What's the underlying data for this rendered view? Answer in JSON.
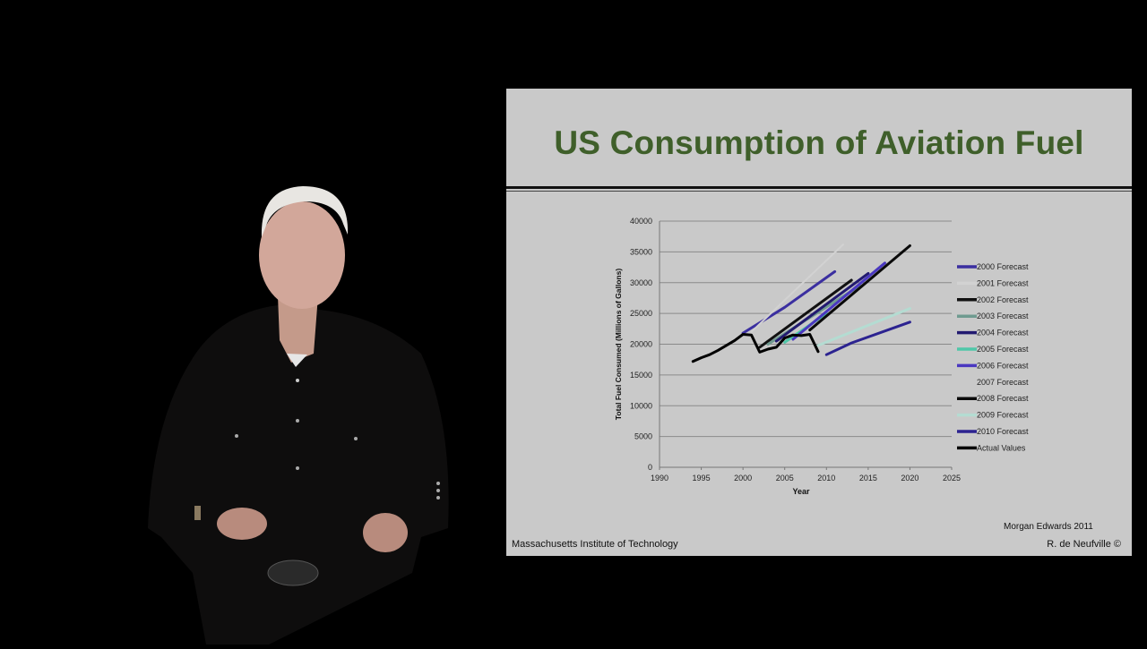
{
  "slide": {
    "title": "US Consumption of Aviation Fuel",
    "credit": "Morgan Edwards 2011",
    "footer_left": "Massachusetts Institute of Technology",
    "footer_right": "R. de Neufville  ©",
    "title_color": "#3f5f2a",
    "background": "#c9c9c9"
  },
  "chart_data": {
    "type": "line",
    "title": "",
    "xlabel": "Year",
    "ylabel": "Total Fuel Consumed (Millions of Gallons)",
    "xlim": [
      1990,
      2025
    ],
    "ylim": [
      0,
      40000
    ],
    "xticks": [
      1990,
      1995,
      2000,
      2005,
      2010,
      2015,
      2020,
      2025
    ],
    "yticks": [
      0,
      5000,
      10000,
      15000,
      20000,
      25000,
      30000,
      35000,
      40000
    ],
    "grid": "horizontal",
    "legend_position": "right",
    "series": [
      {
        "name": "2000 Forecast",
        "color": "#3b2fa0",
        "width": 3,
        "x": [
          2000,
          2005,
          2011
        ],
        "y": [
          21800,
          26000,
          31800
        ]
      },
      {
        "name": "2001 Forecast",
        "color": "#d2d2d2",
        "width": 2,
        "x": [
          2001,
          2012
        ],
        "y": [
          22000,
          36200
        ]
      },
      {
        "name": "2002 Forecast",
        "color": "#111111",
        "width": 3,
        "x": [
          2002,
          2013
        ],
        "y": [
          19500,
          30400
        ]
      },
      {
        "name": "2003 Forecast",
        "color": "#6f9a90",
        "width": 3,
        "x": [
          2003,
          2014
        ],
        "y": [
          20000,
          29500
        ]
      },
      {
        "name": "2004 Forecast",
        "color": "#221a70",
        "width": 3,
        "x": [
          2004,
          2015
        ],
        "y": [
          20500,
          31500
        ]
      },
      {
        "name": "2005 Forecast",
        "color": "#4fc7a8",
        "width": 3,
        "x": [
          2005,
          2010
        ],
        "y": [
          20300,
          25000
        ]
      },
      {
        "name": "2006 Forecast",
        "color": "#4a38c0",
        "width": 3,
        "x": [
          2006,
          2017
        ],
        "y": [
          20800,
          33200
        ]
      },
      {
        "name": "2007 Forecast",
        "color": "#c9c9c9",
        "width": 2,
        "x": [],
        "y": []
      },
      {
        "name": "2008 Forecast",
        "color": "#0a0a0a",
        "width": 3,
        "x": [
          2008,
          2020
        ],
        "y": [
          22300,
          36000
        ]
      },
      {
        "name": "2009 Forecast",
        "color": "#b4dcd2",
        "width": 3,
        "x": [
          2009,
          2020
        ],
        "y": [
          19800,
          25800
        ]
      },
      {
        "name": "2010 Forecast",
        "color": "#2c2390",
        "width": 3,
        "x": [
          2010,
          2013,
          2020
        ],
        "y": [
          18300,
          20200,
          23600
        ]
      },
      {
        "name": "Actual Values",
        "color": "#000000",
        "width": 3,
        "x": [
          1994,
          1995,
          1996,
          1997,
          1998,
          1999,
          2000,
          2001,
          2002,
          2003,
          2004,
          2005,
          2006,
          2007,
          2008,
          2009
        ],
        "y": [
          17200,
          17800,
          18300,
          19000,
          19800,
          20600,
          21600,
          21500,
          18700,
          19200,
          19500,
          21000,
          21500,
          21400,
          21600,
          18800
        ]
      }
    ]
  }
}
